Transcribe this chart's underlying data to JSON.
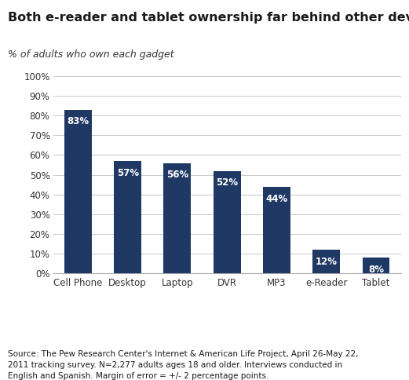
{
  "title": "Both e-reader and tablet ownership far behind other devices",
  "subtitle": "% of adults who own each gadget",
  "categories": [
    "Cell Phone",
    "Desktop",
    "Laptop",
    "DVR",
    "MP3",
    "e-Reader",
    "Tablet"
  ],
  "values": [
    83,
    57,
    56,
    52,
    44,
    12,
    8
  ],
  "bar_color": "#1f3864",
  "label_color": "#ffffff",
  "label_fontsize": 8.5,
  "title_fontsize": 11.5,
  "subtitle_fontsize": 9,
  "ytick_labels": [
    "0%",
    "10%",
    "20%",
    "30%",
    "40%",
    "50%",
    "60%",
    "70%",
    "80%",
    "90%",
    "100%"
  ],
  "ytick_values": [
    0,
    10,
    20,
    30,
    40,
    50,
    60,
    70,
    80,
    90,
    100
  ],
  "ylim": [
    0,
    100
  ],
  "source_text": "Source: The Pew Research Center's Internet & American Life Project, April 26-May 22,\n2011 tracking survey. N=2,277 adults ages 18 and older. Interviews conducted in\nEnglish and Spanish. Margin of error = +/- 2 percentage points.",
  "background_color": "#ffffff",
  "grid_color": "#c8c8c8",
  "tick_fontsize": 8.5,
  "source_fontsize": 7.5
}
